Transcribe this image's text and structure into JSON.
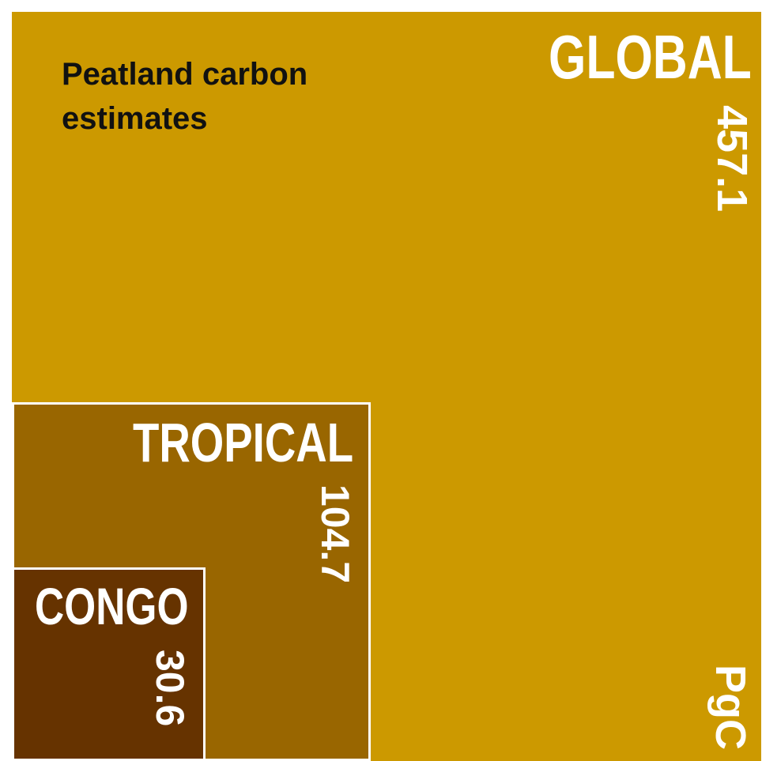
{
  "chart_data": {
    "type": "area",
    "title": "Peatland carbon estimates",
    "unit": "PgC",
    "series": [
      {
        "name": "GLOBAL",
        "value": 457.1,
        "color": "#CC9900"
      },
      {
        "name": "TROPICAL",
        "value": 104.7,
        "color": "#996600"
      },
      {
        "name": "CONGO",
        "value": 30.6,
        "color": "#663300"
      }
    ]
  }
}
